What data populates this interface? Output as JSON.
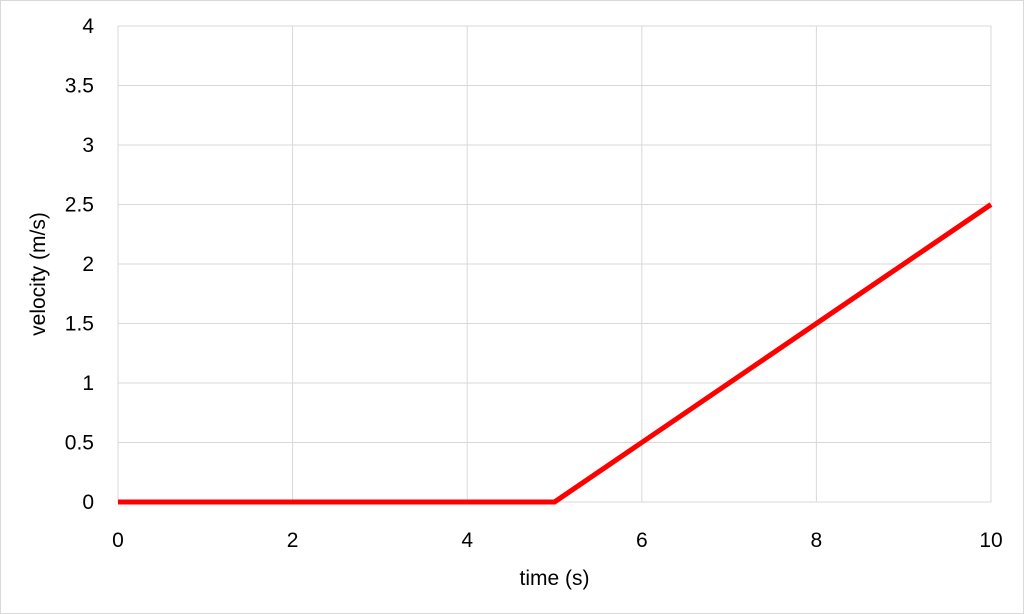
{
  "chart_data": {
    "type": "line",
    "title": "",
    "xlabel": "time (s)",
    "ylabel": "velocity (m/s)",
    "xlim": [
      0,
      10
    ],
    "ylim": [
      0,
      4
    ],
    "x_ticks": [
      "0",
      "2",
      "4",
      "6",
      "8",
      "10"
    ],
    "y_ticks": [
      "0",
      "0.5",
      "1",
      "1.5",
      "2",
      "2.5",
      "3",
      "3.5",
      "4"
    ],
    "grid": true,
    "legend": "none",
    "series": [
      {
        "color": "#ff0000",
        "x": [
          0,
          5,
          10
        ],
        "y": [
          0,
          0,
          2.5
        ]
      }
    ]
  }
}
